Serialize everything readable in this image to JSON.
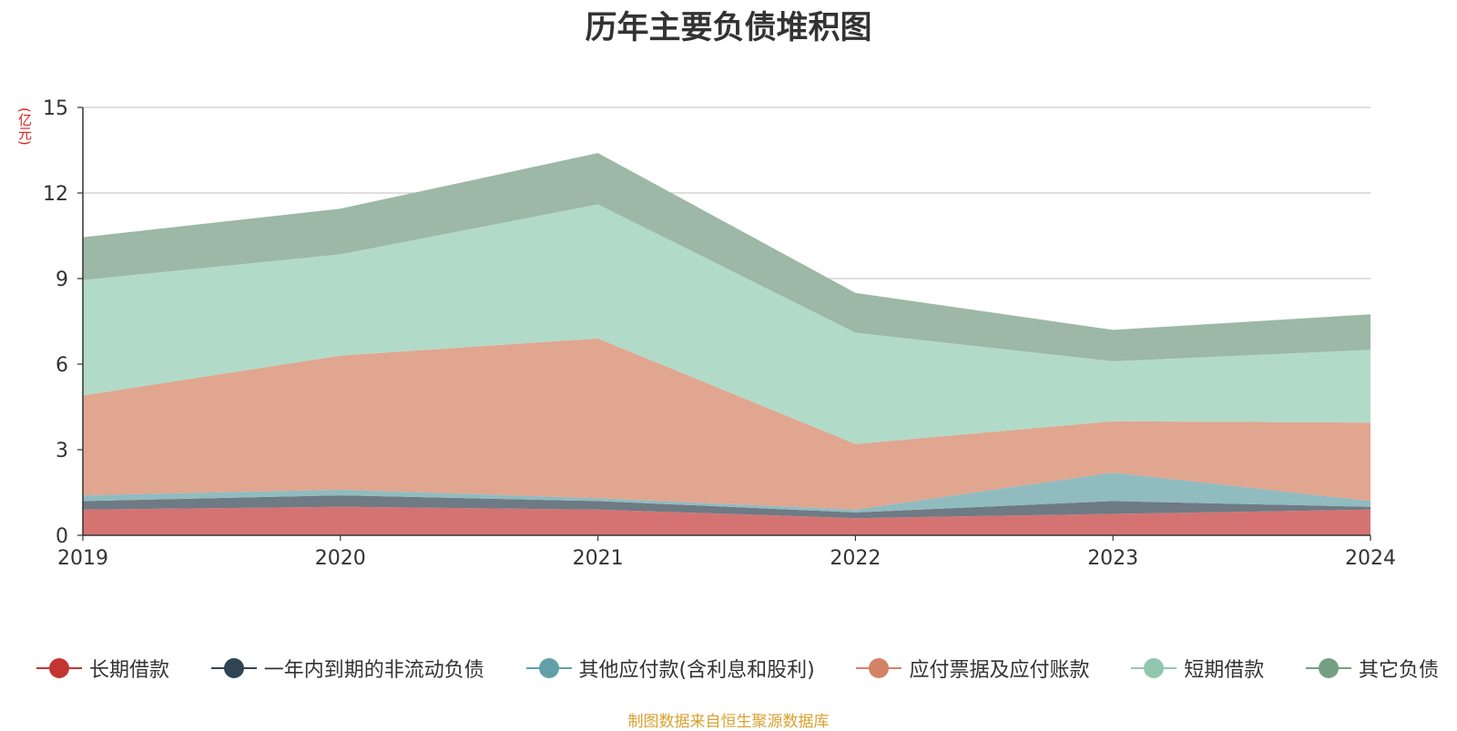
{
  "chart_data": {
    "type": "area",
    "stacked": true,
    "title": "历年主要负债堆积图",
    "unit_label": "(亿元)",
    "x": [
      "2019",
      "2020",
      "2021",
      "2022",
      "2023",
      "2024"
    ],
    "ylim": [
      0,
      15
    ],
    "yticks": [
      "0",
      "3",
      "6",
      "9",
      "12",
      "15"
    ],
    "grid": true,
    "legend_position": "bottom",
    "series": [
      {
        "name": "长期借款",
        "color": "#c23531",
        "area_color": "#d57373",
        "values": [
          0.9,
          1.0,
          0.9,
          0.6,
          0.75,
          0.9
        ]
      },
      {
        "name": "一年内到期的非流动负债",
        "color": "#2f4554",
        "area_color": "#6e7a84",
        "values": [
          0.3,
          0.4,
          0.3,
          0.2,
          0.45,
          0.1
        ]
      },
      {
        "name": "其他应付款(含利息和股利)",
        "color": "#61a0a8",
        "area_color": "#90bbbf",
        "values": [
          0.2,
          0.2,
          0.1,
          0.1,
          1.0,
          0.2
        ]
      },
      {
        "name": "应付票据及应付账款",
        "color": "#d48265",
        "area_color": "#e0a690",
        "values": [
          3.5,
          4.7,
          5.6,
          2.3,
          1.8,
          2.75
        ]
      },
      {
        "name": "短期借款",
        "color": "#91c7ae",
        "area_color": "#b2dac8",
        "values": [
          4.05,
          3.55,
          4.7,
          3.9,
          2.1,
          2.55
        ]
      },
      {
        "name": "其它负债",
        "color": "#749f83",
        "area_color": "#9db8a6",
        "values": [
          1.5,
          1.6,
          1.8,
          1.4,
          1.1,
          1.25
        ]
      }
    ]
  },
  "source_note": "制图数据来自恒生聚源数据库"
}
